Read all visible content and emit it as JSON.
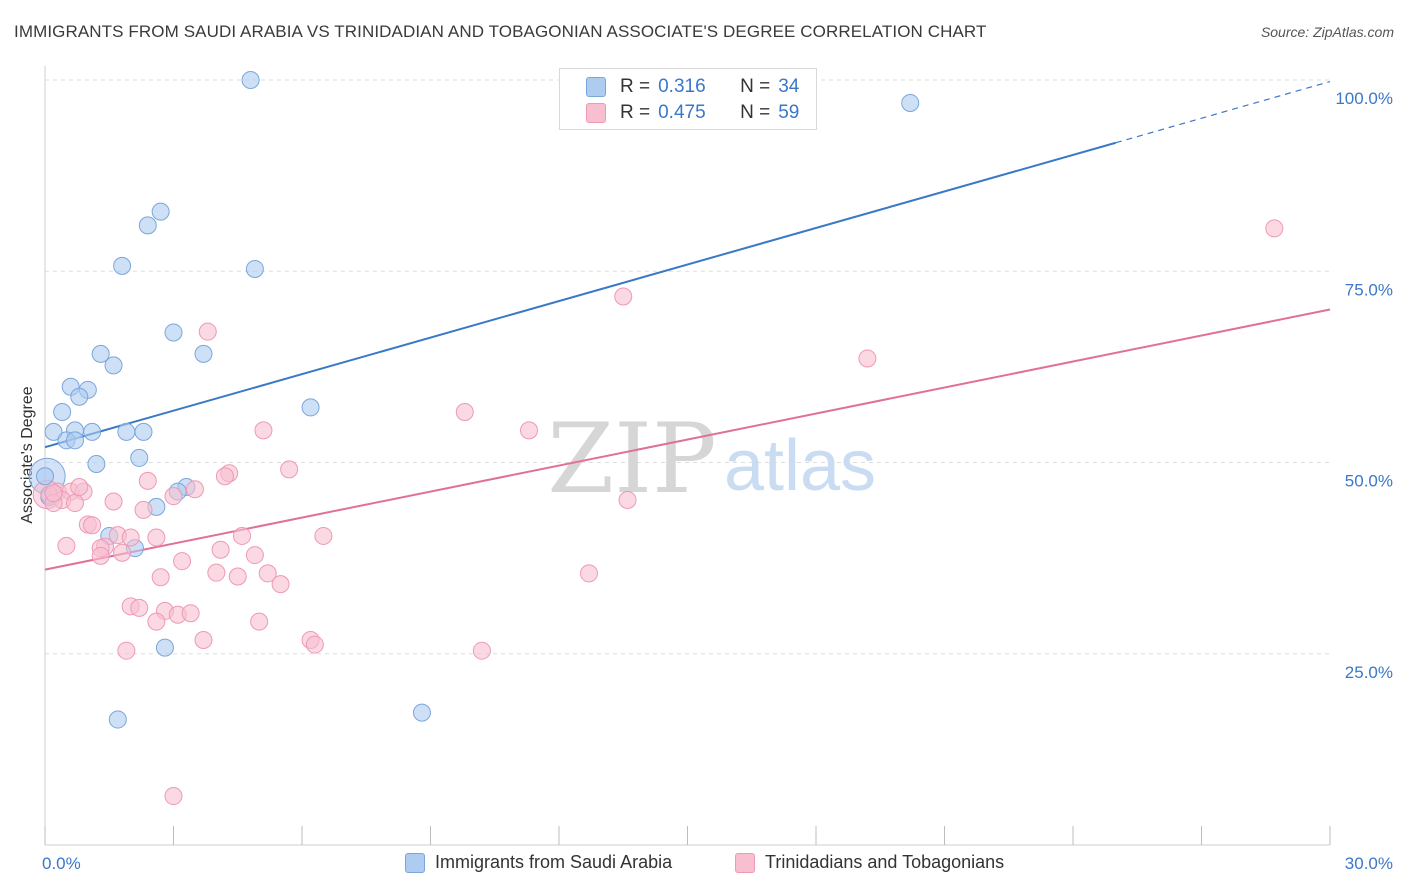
{
  "title": "IMMIGRANTS FROM SAUDI ARABIA VS TRINIDADIAN AND TOBAGONIAN ASSOCIATE'S DEGREE CORRELATION CHART",
  "source": "Source: ZipAtlas.com",
  "watermark": {
    "zip": "ZIP",
    "atlas": "atlas"
  },
  "legend": {
    "rows": [
      {
        "r_label": "R =",
        "r_value": "0.316",
        "n_label": "N =",
        "n_value": "34"
      },
      {
        "r_label": "R =",
        "r_value": "0.475",
        "n_label": "N =",
        "n_value": "59"
      }
    ]
  },
  "colors": {
    "blue_fill": "#aecbf0",
    "blue_stroke": "#7aa6dc",
    "blue_line": "#3a78c8",
    "pink_fill": "#f7bfd0",
    "pink_stroke": "#ee99b6",
    "pink_line": "#e0709a",
    "tick_label": "#3a78c8",
    "grid": "#dddddd"
  },
  "chart_data": {
    "type": "scatter",
    "title": "IMMIGRANTS FROM SAUDI ARABIA VS TRINIDADIAN AND TOBAGONIAN ASSOCIATE'S DEGREE CORRELATION CHART",
    "xlabel": "",
    "ylabel": "Associate's Degree",
    "xlim": [
      0,
      30
    ],
    "ylim": [
      0,
      100
    ],
    "x_tick_labels": [
      "0.0%",
      "30.0%"
    ],
    "y_ticks": [
      25,
      50,
      75,
      100
    ],
    "y_tick_labels": [
      "25.0%",
      "50.0%",
      "75.0%",
      "100.0%"
    ],
    "grid": true,
    "legend_placement": "bottom",
    "series": [
      {
        "name": "Immigrants from Saudi Arabia",
        "color": "#aecbf0",
        "r": 0.316,
        "n": 34,
        "trend": {
          "x0": 0,
          "y0": 52.0,
          "x1": 25.0,
          "y1": 91.8,
          "dashed_to_x": 30,
          "dashed_to_y": 99.8
        },
        "points": [
          [
            4.8,
            100.0
          ],
          [
            20.2,
            97.0
          ],
          [
            2.7,
            82.8
          ],
          [
            2.4,
            81.0
          ],
          [
            1.8,
            75.7
          ],
          [
            4.9,
            75.3
          ],
          [
            3.0,
            67.0
          ],
          [
            3.7,
            64.2
          ],
          [
            1.3,
            64.2
          ],
          [
            1.6,
            62.7
          ],
          [
            0.6,
            59.9
          ],
          [
            1.0,
            59.5
          ],
          [
            0.8,
            58.6
          ],
          [
            0.4,
            56.6
          ],
          [
            6.2,
            57.2
          ],
          [
            0.2,
            54.0
          ],
          [
            0.7,
            54.2
          ],
          [
            1.1,
            54.0
          ],
          [
            1.9,
            54.0
          ],
          [
            2.3,
            54.0
          ],
          [
            0.5,
            52.9
          ],
          [
            0.7,
            52.9
          ],
          [
            2.2,
            50.6
          ],
          [
            1.2,
            49.8
          ],
          [
            0.0,
            48.2
          ],
          [
            3.3,
            46.8
          ],
          [
            3.1,
            46.2
          ],
          [
            2.6,
            44.2
          ],
          [
            1.5,
            40.4
          ],
          [
            2.1,
            38.8
          ],
          [
            2.8,
            25.8
          ],
          [
            8.8,
            17.3
          ],
          [
            1.7,
            16.4
          ],
          [
            0.1,
            45.5
          ]
        ]
      },
      {
        "name": "Trinidadians and Tobagonians",
        "color": "#f7bfd0",
        "r": 0.475,
        "n": 59,
        "trend": {
          "x0": 0,
          "y0": 36.0,
          "x1": 30,
          "y1": 70.0
        },
        "points": [
          [
            28.7,
            80.6
          ],
          [
            13.5,
            71.7
          ],
          [
            19.2,
            63.6
          ],
          [
            3.8,
            67.1
          ],
          [
            9.8,
            56.6
          ],
          [
            11.3,
            54.2
          ],
          [
            5.1,
            54.2
          ],
          [
            4.3,
            48.6
          ],
          [
            4.2,
            48.2
          ],
          [
            5.7,
            49.1
          ],
          [
            2.4,
            47.6
          ],
          [
            0.3,
            46.2
          ],
          [
            0.6,
            46.2
          ],
          [
            0.9,
            46.2
          ],
          [
            0.1,
            45.8
          ],
          [
            0.4,
            45.1
          ],
          [
            0.2,
            44.7
          ],
          [
            3.0,
            45.6
          ],
          [
            13.6,
            45.1
          ],
          [
            1.6,
            44.9
          ],
          [
            0.7,
            44.7
          ],
          [
            2.3,
            43.8
          ],
          [
            1.0,
            41.9
          ],
          [
            1.1,
            41.8
          ],
          [
            0.5,
            39.1
          ],
          [
            6.5,
            40.4
          ],
          [
            4.6,
            40.4
          ],
          [
            1.7,
            40.5
          ],
          [
            2.0,
            40.2
          ],
          [
            2.6,
            40.2
          ],
          [
            1.4,
            39.0
          ],
          [
            1.3,
            38.8
          ],
          [
            4.1,
            38.6
          ],
          [
            3.2,
            37.1
          ],
          [
            4.9,
            37.9
          ],
          [
            1.8,
            38.2
          ],
          [
            1.3,
            37.8
          ],
          [
            4.0,
            35.6
          ],
          [
            4.5,
            35.1
          ],
          [
            5.2,
            35.5
          ],
          [
            12.7,
            35.5
          ],
          [
            2.7,
            35.0
          ],
          [
            5.5,
            34.1
          ],
          [
            2.0,
            31.2
          ],
          [
            2.2,
            31.0
          ],
          [
            2.8,
            30.6
          ],
          [
            3.1,
            30.1
          ],
          [
            3.4,
            30.3
          ],
          [
            2.6,
            29.2
          ],
          [
            5.0,
            29.2
          ],
          [
            3.7,
            26.8
          ],
          [
            6.2,
            26.8
          ],
          [
            6.3,
            26.2
          ],
          [
            1.9,
            25.4
          ],
          [
            10.2,
            25.4
          ],
          [
            3.0,
            6.4
          ],
          [
            0.2,
            46.0
          ],
          [
            0.8,
            46.8
          ],
          [
            3.5,
            46.5
          ]
        ]
      }
    ]
  }
}
